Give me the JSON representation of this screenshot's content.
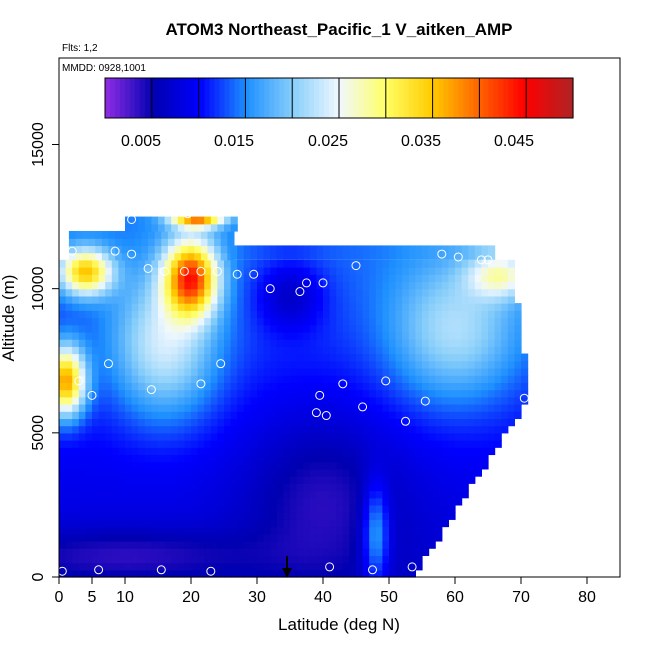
{
  "chart_data": {
    "type": "heatmap",
    "title": "ATOM3 Northeast_Pacific_1 V_aitken_AMP",
    "flights_label": "Flts: 1,2",
    "dates_label": "MMDD: 0928,1001",
    "xlabel": "Latitude (deg N)",
    "ylabel": "Altitude (m)",
    "xlim": [
      0,
      85
    ],
    "ylim": [
      0,
      18000
    ],
    "x_ticks": [
      0,
      5,
      10,
      20,
      30,
      40,
      50,
      60,
      70,
      80
    ],
    "y_ticks": [
      0,
      5000,
      10000,
      15000
    ],
    "colorbar": {
      "range": [
        0.002,
        0.052
      ],
      "ticks": [
        0.005,
        0.015,
        0.025,
        0.035,
        0.045
      ],
      "tick_labels": [
        "0.005",
        "0.015",
        "0.025",
        "0.035",
        "0.045"
      ],
      "colors": [
        "#8a2be2",
        "#0000b0",
        "#0000ff",
        "#1e90ff",
        "#87cefa",
        "#f0f8ff",
        "#ffff66",
        "#ffcc00",
        "#ff6600",
        "#ff0000",
        "#b22222"
      ]
    },
    "profile_max_altitude_m": 10900,
    "ridge_lat_deg": 35,
    "sample_points": [
      {
        "lat": 0.5,
        "alt": 200
      },
      {
        "lat": 6,
        "alt": 250
      },
      {
        "lat": 15.5,
        "alt": 250
      },
      {
        "lat": 23,
        "alt": 200
      },
      {
        "lat": 41,
        "alt": 350
      },
      {
        "lat": 47.5,
        "alt": 250
      },
      {
        "lat": 53.5,
        "alt": 350
      },
      {
        "lat": 3,
        "alt": 6800
      },
      {
        "lat": 5,
        "alt": 6300
      },
      {
        "lat": 14,
        "alt": 6500
      },
      {
        "lat": 21.5,
        "alt": 6700
      },
      {
        "lat": 7.5,
        "alt": 7400
      },
      {
        "lat": 24.5,
        "alt": 7400
      },
      {
        "lat": 39.5,
        "alt": 6300
      },
      {
        "lat": 43,
        "alt": 6700
      },
      {
        "lat": 49.5,
        "alt": 6800
      },
      {
        "lat": 39,
        "alt": 5700
      },
      {
        "lat": 40.5,
        "alt": 5600
      },
      {
        "lat": 46,
        "alt": 5900
      },
      {
        "lat": 52.5,
        "alt": 5400
      },
      {
        "lat": 55.5,
        "alt": 6100
      },
      {
        "lat": 70.5,
        "alt": 6200
      },
      {
        "lat": 2,
        "alt": 11300
      },
      {
        "lat": 8.5,
        "alt": 11300
      },
      {
        "lat": 11,
        "alt": 11200
      },
      {
        "lat": 13.5,
        "alt": 10700
      },
      {
        "lat": 16,
        "alt": 10600
      },
      {
        "lat": 19,
        "alt": 10600
      },
      {
        "lat": 21.5,
        "alt": 10600
      },
      {
        "lat": 24,
        "alt": 10600
      },
      {
        "lat": 27,
        "alt": 10500
      },
      {
        "lat": 29.5,
        "alt": 10500
      },
      {
        "lat": 32,
        "alt": 10000
      },
      {
        "lat": 36.5,
        "alt": 9900
      },
      {
        "lat": 37.5,
        "alt": 10200
      },
      {
        "lat": 40,
        "alt": 10200
      },
      {
        "lat": 45,
        "alt": 10800
      },
      {
        "lat": 11,
        "alt": 12400
      },
      {
        "lat": 19.5,
        "alt": 12600
      },
      {
        "lat": 29.5,
        "alt": 12400
      },
      {
        "lat": 58,
        "alt": 11200
      },
      {
        "lat": 60.5,
        "alt": 11100
      },
      {
        "lat": 64,
        "alt": 11000
      },
      {
        "lat": 65,
        "alt": 11000
      }
    ]
  }
}
